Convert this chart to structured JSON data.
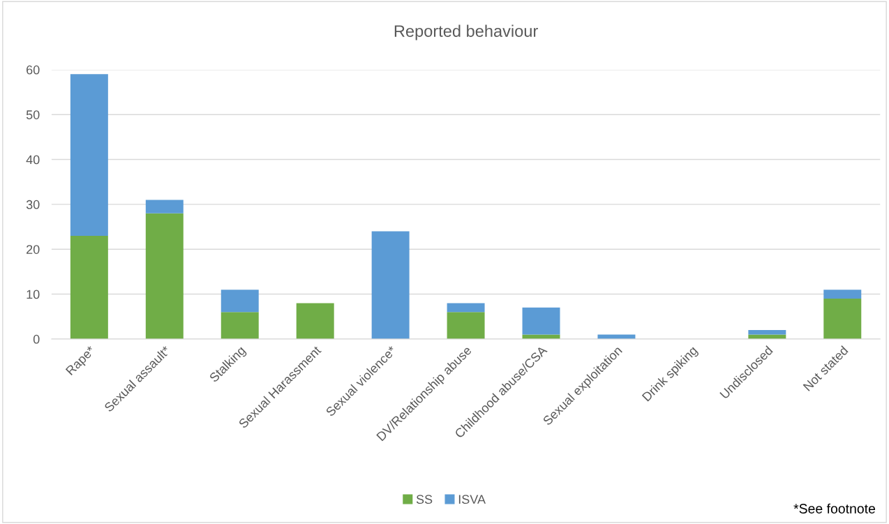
{
  "chart_data": {
    "type": "bar",
    "title": "Reported behaviour",
    "stacked": true,
    "categories": [
      "Rape*",
      "Sexual assault*",
      "Stalking",
      "Sexual Harassment",
      "Sexual violence*",
      "DV/Relationship abuse",
      "Childhood abuse/CSA",
      "Sexual exploitation",
      "Drink spiking",
      "Undisclosed",
      "Not stated"
    ],
    "series": [
      {
        "name": "SS",
        "color": "#70ad47",
        "values": [
          23,
          28,
          6,
          8,
          0,
          6,
          1,
          0,
          0,
          1,
          9
        ]
      },
      {
        "name": "ISVA",
        "color": "#5b9bd5",
        "values": [
          36,
          3,
          5,
          0,
          24,
          2,
          6,
          1,
          0,
          1,
          2
        ]
      }
    ],
    "ylim": [
      0,
      60
    ],
    "yticks": [
      0,
      10,
      20,
      30,
      40,
      50,
      60
    ],
    "grid": "y",
    "legend": "bottom",
    "annotations": [
      "*See footnote"
    ]
  }
}
